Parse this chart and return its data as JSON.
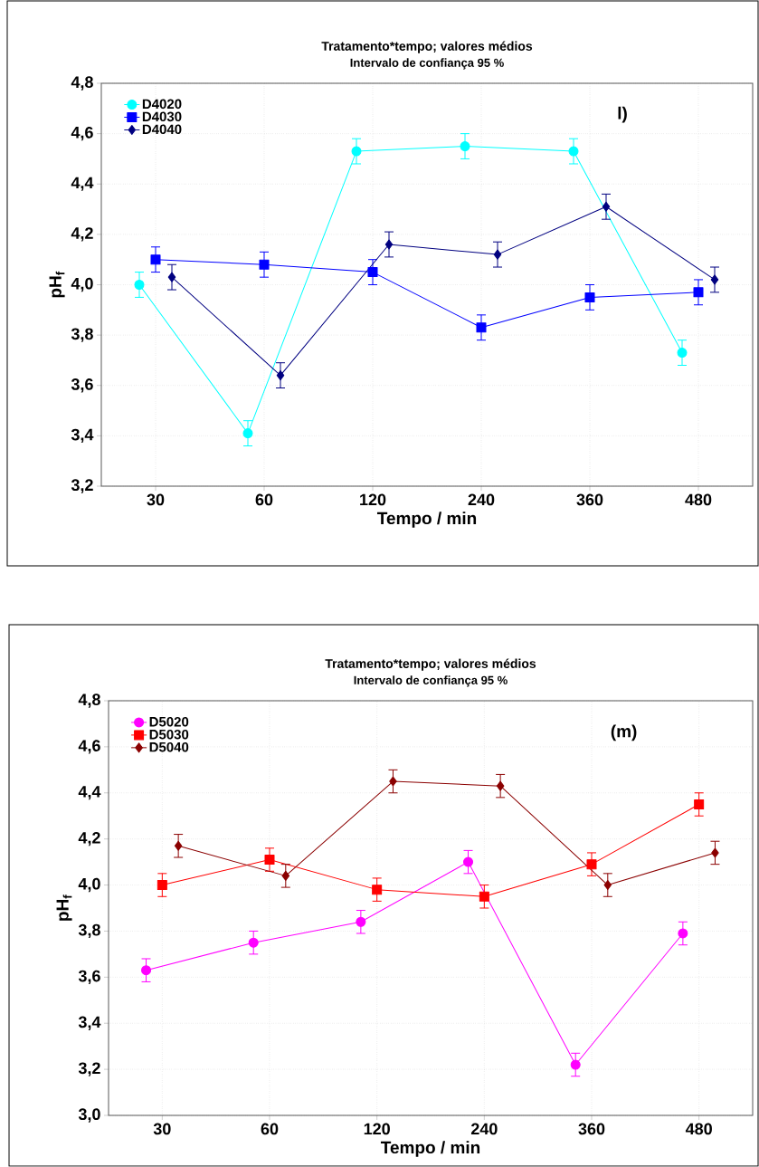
{
  "chart_data": [
    {
      "type": "line",
      "title": "Tratamento*tempo; valores médios",
      "subtitle": "Intervalo de confiança 95 %",
      "xlabel": "Tempo / min",
      "ylabel": "pH$_{f}$",
      "annotations": [
        "l)"
      ],
      "categories": [
        "30",
        "60",
        "120",
        "240",
        "360",
        "480"
      ],
      "ylim": [
        3.2,
        4.8
      ],
      "yticks": [
        {
          "value": 3.2,
          "label": "3,2"
        },
        {
          "value": 3.4,
          "label": "3,4"
        },
        {
          "value": 3.6,
          "label": "3,6"
        },
        {
          "value": 3.8,
          "label": "3,8"
        },
        {
          "value": 4.0,
          "label": "4,0"
        },
        {
          "value": 4.2,
          "label": "4,2"
        },
        {
          "value": 4.4,
          "label": "4,4"
        },
        {
          "value": 4.6,
          "label": "4,6"
        },
        {
          "value": 4.8,
          "label": "4,8"
        }
      ],
      "grid": true,
      "legend": "top left",
      "series": [
        {
          "name": "D4020",
          "color": "#00ffff",
          "marker": "circle",
          "values": [
            4.0,
            3.41,
            4.53,
            4.55,
            4.53,
            3.73
          ],
          "errors": [
            0.05,
            0.05,
            0.05,
            0.05,
            0.05,
            0.05
          ]
        },
        {
          "name": "D4030",
          "color": "#0000ff",
          "marker": "square",
          "values": [
            4.1,
            4.08,
            4.05,
            3.83,
            3.95,
            3.97
          ],
          "errors": [
            0.05,
            0.05,
            0.05,
            0.05,
            0.05,
            0.05
          ]
        },
        {
          "name": "D4040",
          "color": "#000080",
          "marker": "diamond",
          "values": [
            4.03,
            3.64,
            4.16,
            4.12,
            4.31,
            4.02
          ],
          "errors": [
            0.05,
            0.05,
            0.05,
            0.05,
            0.05,
            0.05
          ]
        }
      ]
    },
    {
      "type": "line",
      "title": "Tratamento*tempo; valores médios",
      "subtitle": "Intervalo de confiança 95 %",
      "xlabel": "Tempo / min",
      "ylabel": "pH$_{f}$",
      "annotations": [
        "(m)"
      ],
      "categories": [
        "30",
        "60",
        "120",
        "240",
        "360",
        "480"
      ],
      "ylim": [
        3.0,
        4.8
      ],
      "yticks": [
        {
          "value": 3.0,
          "label": "3,0"
        },
        {
          "value": 3.2,
          "label": "3,2"
        },
        {
          "value": 3.4,
          "label": "3,4"
        },
        {
          "value": 3.6,
          "label": "3,6"
        },
        {
          "value": 3.8,
          "label": "3,8"
        },
        {
          "value": 4.0,
          "label": "4,0"
        },
        {
          "value": 4.2,
          "label": "4,2"
        },
        {
          "value": 4.4,
          "label": "4,4"
        },
        {
          "value": 4.6,
          "label": "4,6"
        },
        {
          "value": 4.8,
          "label": "4,8"
        }
      ],
      "grid": true,
      "legend": "top left",
      "series": [
        {
          "name": "D5020",
          "color": "#ff00ff",
          "marker": "circle",
          "values": [
            3.63,
            3.75,
            3.84,
            4.1,
            3.22,
            3.79
          ],
          "errors": [
            0.05,
            0.05,
            0.05,
            0.05,
            0.05,
            0.05
          ]
        },
        {
          "name": "D5030",
          "color": "#ff0000",
          "marker": "square",
          "values": [
            4.0,
            4.11,
            3.98,
            3.95,
            4.09,
            4.35
          ],
          "errors": [
            0.05,
            0.05,
            0.05,
            0.05,
            0.05,
            0.05
          ]
        },
        {
          "name": "D5040",
          "color": "#8b0000",
          "marker": "diamond",
          "values": [
            4.17,
            4.04,
            4.45,
            4.43,
            4.0,
            4.14
          ],
          "errors": [
            0.05,
            0.05,
            0.05,
            0.05,
            0.05,
            0.05
          ]
        }
      ]
    }
  ]
}
